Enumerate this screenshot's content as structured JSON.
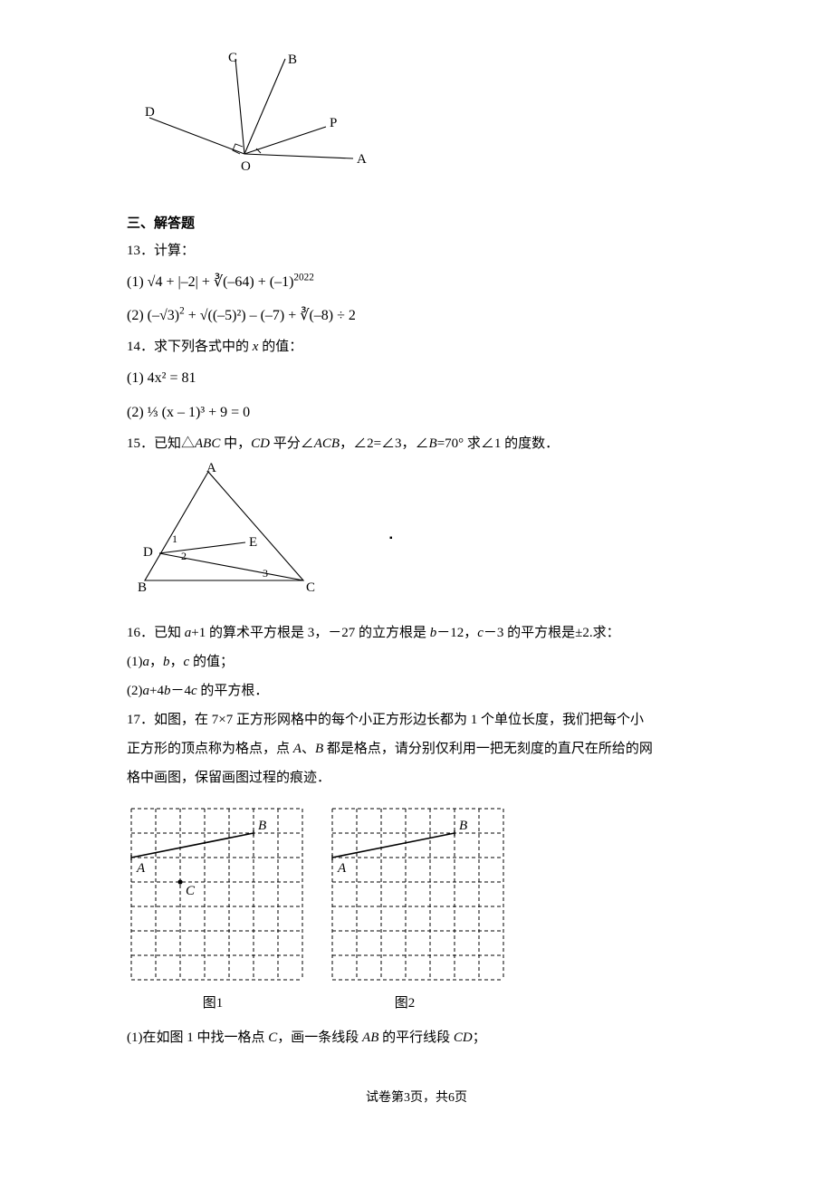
{
  "figures": {
    "rays": {
      "labels": {
        "O": "O",
        "A": "A",
        "P": "P",
        "B": "B",
        "C": "C",
        "D": "D"
      }
    },
    "triangle": {
      "labels": {
        "A": "A",
        "B": "B",
        "C": "C",
        "D": "D",
        "E": "E",
        "n1": "1",
        "n2": "2",
        "n3": "3"
      }
    },
    "grids": {
      "caption1": "图1",
      "caption2": "图2",
      "A": "A",
      "B": "B",
      "C": "C",
      "size": 7,
      "cell": 27,
      "stroke": "#000000",
      "dash": "4 3"
    }
  },
  "section3_heading": "三、解答题",
  "q13": {
    "stem": "13．计算：",
    "p1_prefix": "(1)",
    "p1_expr": "√4 + |–2| + ∛(–64) + (–1)",
    "p1_exp": "2022",
    "p2_prefix": "(2)",
    "p2_expr_a": "(–√3)",
    "p2_exp_a": "2",
    "p2_expr_b": " + √((–5)²) – (–7) + ∛(–8) ÷ 2"
  },
  "q14": {
    "stem": "14．求下列各式中的 x 的值：",
    "p1": "(1) 4x² = 81",
    "p2": "(2) ⅓ (x – 1)³ + 9 = 0"
  },
  "q15": {
    "stem": "15．已知△ABC 中，CD 平分∠ACB，∠2=∠3，∠B=70° 求∠1 的度数．"
  },
  "q16": {
    "stem": "16．已知 a+1 的算术平方根是 3，－27 的立方根是 b－12，c－3 的平方根是±2.求：",
    "p1": "(1)a，b，c 的值；",
    "p2": "(2)a+4b－4c 的平方根．"
  },
  "q17": {
    "stem1": "17．如图，在 7×7 正方形网格中的每个小正方形边长都为 1 个单位长度，我们把每个小",
    "stem2": "正方形的顶点称为格点，点 A、B 都是格点，请分别仅利用一把无刻度的直尺在所给的网",
    "stem3": "格中画图，保留画图过程的痕迹．",
    "p1": "(1)在如图 1 中找一格点 C，画一条线段 AB 的平行线段 CD；"
  },
  "footer": "试卷第3页，共6页"
}
